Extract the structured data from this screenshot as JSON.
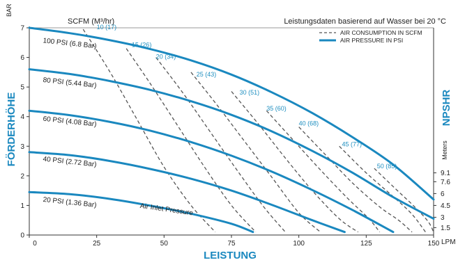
{
  "colors": {
    "pressure_curve": "#1a88bf",
    "air_curve": "#555555",
    "title": "#1a88bf",
    "air_label": "#1f8fc0"
  },
  "chart_data": {
    "type": "line",
    "title": "",
    "header_left": "SCFM (M³/hr)",
    "header_right": "Leistungsdaten basierend auf Wasser bei 20 °C",
    "xlabel": "LEISTUNG",
    "x_unit": "LPM",
    "ylabel_left": "FÖRDERHÖHE",
    "y_unit": "BAR",
    "ylabel_right": "NPSHR",
    "right_unit": "Meters",
    "xlim": [
      0,
      150
    ],
    "ylim": [
      0,
      7
    ],
    "x_ticks": [
      "0",
      "25",
      "50",
      "75",
      "100",
      "125",
      "150"
    ],
    "y_ticks": [
      "0",
      "1",
      "2",
      "3",
      "4",
      "5",
      "6",
      "7"
    ],
    "npshr_ticks": [
      {
        "label": "1.5",
        "y": 0.25
      },
      {
        "label": "3",
        "y": 0.6
      },
      {
        "label": "4.5",
        "y": 1.0
      },
      {
        "label": "6",
        "y": 1.4
      },
      {
        "label": "7.6",
        "y": 1.8
      },
      {
        "label": "9.1",
        "y": 2.1
      }
    ],
    "legend": [
      {
        "label": "AIR CONSUMPTION IN SCFM",
        "style": "dashed"
      },
      {
        "label": "AIR PRESSURE IN PSI",
        "style": "solid"
      }
    ],
    "air_inlet_note": "Air Inlet Pressure",
    "pressure_series": [
      {
        "name": "100 PSI (6.8 Bar)",
        "label_at": [
          5,
          6.5
        ],
        "x": [
          0,
          15,
          30,
          45,
          60,
          75,
          90,
          105,
          120,
          135,
          150
        ],
        "y": [
          7.0,
          6.82,
          6.58,
          6.28,
          5.9,
          5.42,
          4.82,
          4.12,
          3.3,
          2.38,
          1.2
        ]
      },
      {
        "name": "80 PSI (5.44 Bar)",
        "label_at": [
          5,
          5.17
        ],
        "x": [
          0,
          15,
          30,
          45,
          60,
          75,
          90,
          105,
          120,
          135,
          150
        ],
        "y": [
          5.6,
          5.44,
          5.2,
          4.9,
          4.52,
          4.06,
          3.5,
          2.84,
          2.1,
          1.28,
          0.55
        ]
      },
      {
        "name": "60 PSI (4.08 Bar)",
        "label_at": [
          5,
          3.86
        ],
        "x": [
          0,
          15,
          30,
          45,
          60,
          75,
          90,
          105,
          120,
          135
        ],
        "y": [
          4.2,
          4.05,
          3.82,
          3.52,
          3.14,
          2.68,
          2.14,
          1.52,
          0.84,
          0.1
        ]
      },
      {
        "name": "40 PSI (2.72 Bar)",
        "label_at": [
          5,
          2.5
        ],
        "x": [
          0,
          15,
          30,
          45,
          60,
          75,
          90,
          105,
          117
        ],
        "y": [
          2.8,
          2.7,
          2.5,
          2.23,
          1.9,
          1.5,
          1.02,
          0.5,
          0.1
        ]
      },
      {
        "name": "20 PSI (1.36 Bar)",
        "label_at": [
          5,
          1.13
        ],
        "x": [
          0,
          15,
          30,
          45,
          60,
          75,
          83
        ],
        "y": [
          1.45,
          1.38,
          1.22,
          0.99,
          0.72,
          0.38,
          0.1
        ]
      }
    ],
    "air_series": [
      {
        "name": "10 (17)",
        "label_at": [
          25,
          6.95
        ],
        "x": [
          20,
          30,
          40,
          50,
          60,
          69
        ],
        "y": [
          6.95,
          5.5,
          3.9,
          2.3,
          1.0,
          0.1
        ]
      },
      {
        "name": "15 (26)",
        "label_at": [
          38,
          6.35
        ],
        "x": [
          36,
          45,
          55,
          65,
          75,
          84
        ],
        "y": [
          6.3,
          5.1,
          3.7,
          2.3,
          1.0,
          0.1
        ]
      },
      {
        "name": "20 (34)",
        "label_at": [
          47,
          5.95
        ],
        "x": [
          47,
          57,
          67,
          77,
          87,
          95
        ],
        "y": [
          6.0,
          4.8,
          3.5,
          2.2,
          0.95,
          0.1
        ]
      },
      {
        "name": "25 (43)",
        "label_at": [
          62,
          5.35
        ],
        "x": [
          60,
          70,
          80,
          90,
          100,
          108
        ],
        "y": [
          5.5,
          4.35,
          3.15,
          1.95,
          0.75,
          0.1
        ]
      },
      {
        "name": "30 (51)",
        "label_at": [
          78,
          4.75
        ],
        "x": [
          75,
          85,
          95,
          105,
          115,
          122
        ],
        "y": [
          4.85,
          3.75,
          2.6,
          1.5,
          0.55,
          0.1
        ]
      },
      {
        "name": "35 (60)",
        "label_at": [
          88,
          4.2
        ],
        "x": [
          88,
          98,
          108,
          118,
          126,
          130
        ],
        "y": [
          4.2,
          3.2,
          2.2,
          1.25,
          0.55,
          0.1
        ]
      },
      {
        "name": "40 (68)",
        "label_at": [
          100,
          3.7
        ],
        "x": [
          100,
          110,
          120,
          130,
          137,
          142
        ],
        "y": [
          3.65,
          2.7,
          1.75,
          0.95,
          0.5,
          0.1
        ]
      },
      {
        "name": "45 (77)",
        "label_at": [
          116,
          3.0
        ],
        "x": [
          115,
          125,
          135,
          142,
          147
        ],
        "y": [
          3.0,
          2.1,
          1.3,
          0.7,
          0.1
        ]
      },
      {
        "name": "50 (85)",
        "label_at": [
          129,
          2.25
        ],
        "x": [
          128,
          136,
          143,
          148,
          150
        ],
        "y": [
          2.25,
          1.55,
          0.95,
          0.45,
          0.1
        ]
      }
    ]
  }
}
